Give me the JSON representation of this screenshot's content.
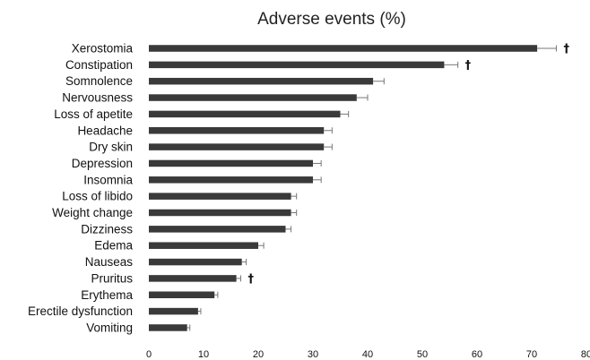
{
  "chart_data": {
    "type": "bar",
    "orientation": "horizontal",
    "title": "Adverse events (%)",
    "xlabel": "",
    "ylabel": "",
    "xlim": [
      0,
      80
    ],
    "xticks": [
      "0",
      "10",
      "20",
      "30",
      "40",
      "50",
      "60",
      "70",
      "80"
    ],
    "grid": false,
    "legend": "none",
    "bar_color": "#3a3a3a",
    "categories": [
      "Xerostomia",
      "Constipation",
      "Somnolence",
      "Nervousness",
      "Loss of apetite",
      "Headache",
      "Dry skin",
      "Depression",
      "Insomnia",
      "Loss of libido",
      "Weight change",
      "Dizziness",
      "Edema",
      "Nauseas",
      "Pruritus",
      "Erythema",
      "Erectile dysfunction",
      "Vomiting"
    ],
    "values": [
      71,
      54,
      41,
      38,
      35,
      32,
      32,
      30,
      30,
      26,
      26,
      25,
      20,
      17,
      16,
      12,
      9,
      7
    ],
    "error": [
      3.5,
      2.5,
      2,
      2,
      1.5,
      1.5,
      1.5,
      1.5,
      1.5,
      1,
      1,
      1,
      1,
      0.8,
      0.8,
      0.6,
      0.5,
      0.5
    ],
    "annotations": [
      {
        "category": "Xerostomia",
        "text": "†"
      },
      {
        "category": "Constipation",
        "text": "†"
      },
      {
        "category": "Pruritus",
        "text": "†"
      }
    ]
  }
}
